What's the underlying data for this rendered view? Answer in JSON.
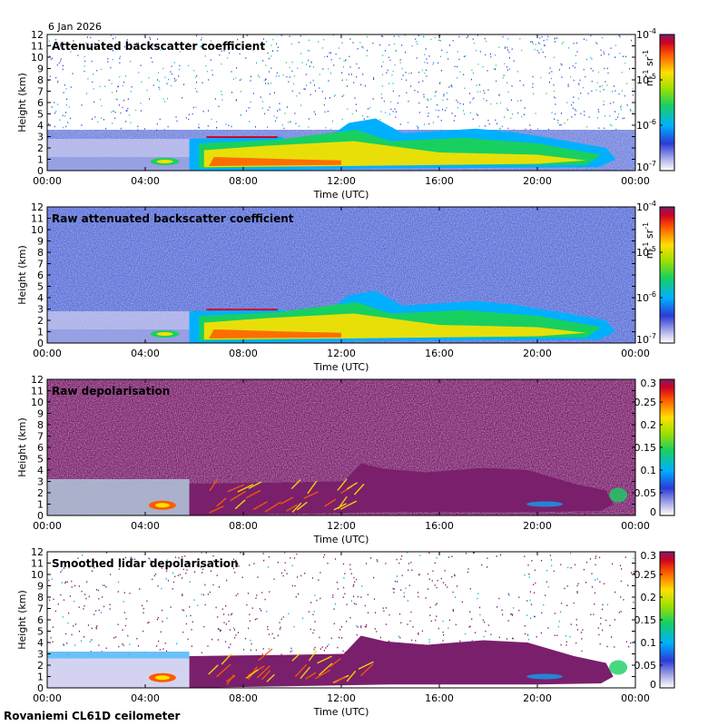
{
  "date": "6 Jan 2026",
  "footer": "Rovaniemi CL61D ceilometer",
  "chart_data": [
    {
      "type": "heatmap",
      "title": "Attenuated backscatter coefficient",
      "xlabel": "Time (UTC)",
      "ylabel": "Height (km)",
      "x_ticks": [
        "00:00",
        "04:00",
        "08:00",
        "12:00",
        "16:00",
        "20:00",
        "00:00"
      ],
      "y_ticks": [
        "0",
        "1",
        "2",
        "3",
        "4",
        "5",
        "6",
        "7",
        "8",
        "9",
        "10",
        "11",
        "12"
      ],
      "ylim": [
        0,
        12
      ],
      "colorbar": {
        "scale": "log",
        "range": [
          1e-07,
          0.0001
        ],
        "tick_bases": [
          "10",
          "10",
          "10",
          "10"
        ],
        "tick_exps": [
          "-4",
          "-5",
          "-6",
          "-7"
        ],
        "unit": {
          "base1": "m",
          "exp1": "-1",
          "base2": " sr",
          "exp2": "-1"
        }
      }
    },
    {
      "type": "heatmap",
      "title": "Raw attenuated backscatter coefficient",
      "xlabel": "Time (UTC)",
      "ylabel": "Height (km)",
      "x_ticks": [
        "00:00",
        "04:00",
        "08:00",
        "12:00",
        "16:00",
        "20:00",
        "00:00"
      ],
      "y_ticks": [
        "0",
        "1",
        "2",
        "3",
        "4",
        "5",
        "6",
        "7",
        "8",
        "9",
        "10",
        "11",
        "12"
      ],
      "ylim": [
        0,
        12
      ],
      "colorbar": {
        "scale": "log",
        "range": [
          1e-07,
          0.0001
        ],
        "tick_bases": [
          "10",
          "10",
          "10",
          "10"
        ],
        "tick_exps": [
          "-4",
          "-5",
          "-6",
          "-7"
        ],
        "unit": {
          "base1": "m",
          "exp1": "-1",
          "base2": " sr",
          "exp2": "-1"
        }
      }
    },
    {
      "type": "heatmap",
      "title": "Raw depolarisation",
      "xlabel": "Time (UTC)",
      "ylabel": "Height (km)",
      "x_ticks": [
        "00:00",
        "04:00",
        "08:00",
        "12:00",
        "16:00",
        "20:00",
        "00:00"
      ],
      "y_ticks": [
        "0",
        "1",
        "2",
        "3",
        "4",
        "5",
        "6",
        "7",
        "8",
        "9",
        "10",
        "11",
        "12"
      ],
      "ylim": [
        0,
        12
      ],
      "colorbar": {
        "scale": "linear",
        "range": [
          0,
          0.3
        ],
        "ticks": [
          "0.3",
          "0.25",
          "0.2",
          "0.15",
          "0.1",
          "0.05",
          "0"
        ]
      }
    },
    {
      "type": "heatmap",
      "title": "Smoothed lidar depolarisation",
      "xlabel": "Time (UTC)",
      "ylabel": "Height (km)",
      "x_ticks": [
        "00:00",
        "04:00",
        "08:00",
        "12:00",
        "16:00",
        "20:00",
        "00:00"
      ],
      "y_ticks": [
        "0",
        "1",
        "2",
        "3",
        "4",
        "5",
        "6",
        "7",
        "8",
        "9",
        "10",
        "11",
        "12"
      ],
      "ylim": [
        0,
        12
      ],
      "colorbar": {
        "scale": "linear",
        "range": [
          0,
          0.3
        ],
        "ticks": [
          "0.3",
          "0.25",
          "0.2",
          "0.15",
          "0.1",
          "0.05",
          "0"
        ]
      }
    }
  ]
}
